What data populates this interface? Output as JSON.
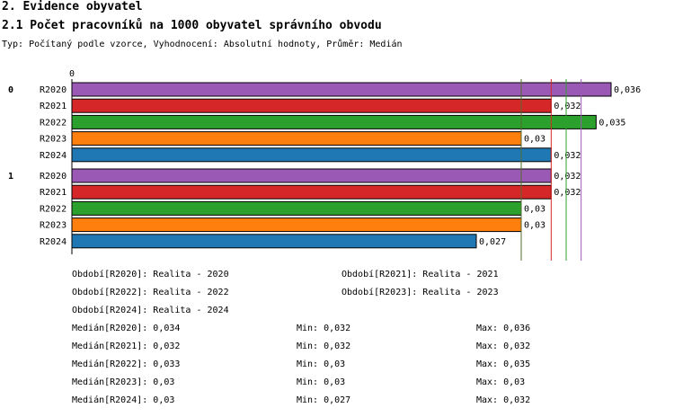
{
  "header": {
    "section": "2. Evidence obyvatel",
    "title": "2.1 Počet pracovníků na 1000 obyvatel správního obvodu",
    "subtitle": "Typ: Počítaný podle vzorce, Vyhodnocení: Absolutní hodnoty, Průměr: Medián"
  },
  "chart_data": {
    "type": "bar",
    "orientation": "horizontal",
    "axis_zero_label": "0",
    "xlim": [
      0,
      0.037
    ],
    "groups": [
      {
        "label": "0",
        "bars": [
          {
            "name": "R2020",
            "value": 0.036,
            "label": "0,036"
          },
          {
            "name": "R2021",
            "value": 0.032,
            "label": "0,032"
          },
          {
            "name": "R2022",
            "value": 0.035,
            "label": "0,035"
          },
          {
            "name": "R2023",
            "value": 0.03,
            "label": "0,03"
          },
          {
            "name": "R2024",
            "value": 0.032,
            "label": "0,032"
          }
        ]
      },
      {
        "label": "1",
        "bars": [
          {
            "name": "R2020",
            "value": 0.032,
            "label": "0,032"
          },
          {
            "name": "R2021",
            "value": 0.032,
            "label": "0,032"
          },
          {
            "name": "R2022",
            "value": 0.03,
            "label": "0,03"
          },
          {
            "name": "R2023",
            "value": 0.03,
            "label": "0,03"
          },
          {
            "name": "R2024",
            "value": 0.027,
            "label": "0,027"
          }
        ]
      }
    ],
    "series_colors": {
      "R2020": "#9b59b6",
      "R2021": "#d62728",
      "R2022": "#2ca02c",
      "R2023": "#ff7f0e",
      "R2024": "#1f77b4"
    },
    "median_lines": [
      {
        "series": "R2020",
        "value": 0.034,
        "color": "#9b59b6"
      },
      {
        "series": "R2021",
        "value": 0.032,
        "color": "#d62728"
      },
      {
        "series": "R2022",
        "value": 0.033,
        "color": "#2ca02c"
      },
      {
        "series": "R2023",
        "value": 0.03,
        "color": "#ff7f0e"
      },
      {
        "series": "R2024",
        "value": 0.03,
        "color": "#556b2f"
      }
    ]
  },
  "legend": {
    "periods": [
      "Období[R2020]: Realita - 2020",
      "Období[R2021]: Realita - 2021",
      "Období[R2022]: Realita - 2022",
      "Období[R2023]: Realita - 2023",
      "Období[R2024]: Realita - 2024"
    ],
    "stats": [
      {
        "median": "Medián[R2020]: 0,034",
        "min": "Min: 0,032",
        "max": "Max: 0,036"
      },
      {
        "median": "Medián[R2021]: 0,032",
        "min": "Min: 0,032",
        "max": "Max: 0,032"
      },
      {
        "median": "Medián[R2022]: 0,033",
        "min": "Min: 0,03",
        "max": "Max: 0,035"
      },
      {
        "median": "Medián[R2023]: 0,03",
        "min": "Min: 0,03",
        "max": "Max: 0,03"
      },
      {
        "median": "Medián[R2024]: 0,03",
        "min": "Min: 0,027",
        "max": "Max: 0,032"
      }
    ]
  }
}
